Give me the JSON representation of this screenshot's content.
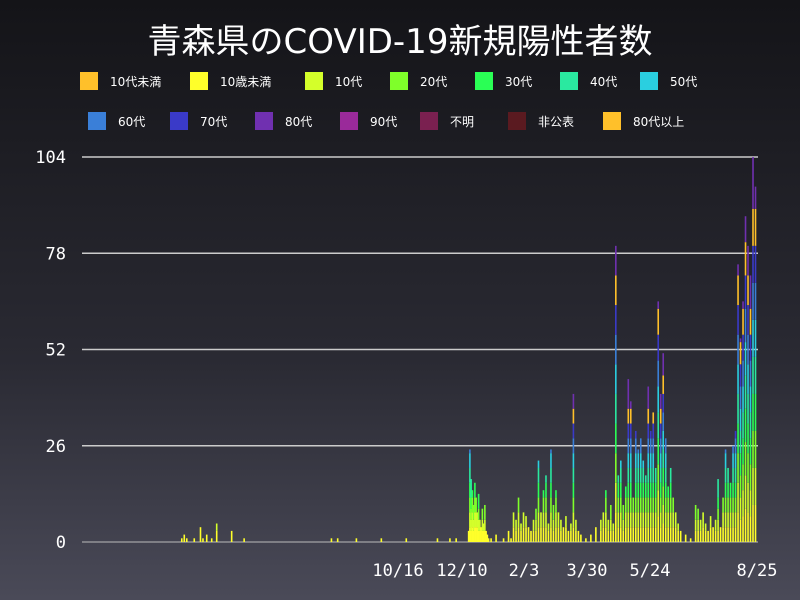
{
  "chart_data": {
    "type": "bar",
    "stacked": true,
    "title": "青森県のCOVID-19新規陽性者数",
    "xlabel": "",
    "ylabel": "",
    "ylim": [
      0,
      104
    ],
    "yticks": [
      0,
      26,
      52,
      78,
      104
    ],
    "grid": "horizontal",
    "legend_placement": "top",
    "x_tick_labels": [
      {
        "label": "10/16",
        "day_index": 234
      },
      {
        "label": "12/10",
        "day_index": 289
      },
      {
        "label": "2/3",
        "day_index": 344
      },
      {
        "label": "3/30",
        "day_index": 399
      },
      {
        "label": "5/24",
        "day_index": 454
      },
      {
        "label": "8/25",
        "day_index": 547
      }
    ],
    "series": [
      {
        "name": "10代未満",
        "color": "#ffc02a"
      },
      {
        "name": "10歳未満",
        "color": "#ffff2a"
      },
      {
        "name": "10代",
        "color": "#d4ff2a"
      },
      {
        "name": "20代",
        "color": "#7fff2a"
      },
      {
        "name": "30代",
        "color": "#2aff55"
      },
      {
        "name": "40代",
        "color": "#2ae9a0"
      },
      {
        "name": "50代",
        "color": "#2acfe0"
      },
      {
        "name": "60代",
        "color": "#3a7fd8"
      },
      {
        "name": "70代",
        "color": "#3a3ac8"
      },
      {
        "name": "80代",
        "color": "#7030b0"
      },
      {
        "name": "90代",
        "color": "#9a2a9a"
      },
      {
        "name": "不明",
        "color": "#7a2050"
      },
      {
        "name": "非公表",
        "color": "#5a1a20"
      },
      {
        "name": "80代以上",
        "color": "#ffc02a"
      }
    ],
    "daily_totals": [
      {
        "day": 0,
        "value": 1
      },
      {
        "day": 2,
        "value": 2
      },
      {
        "day": 4,
        "value": 1
      },
      {
        "day": 10,
        "value": 1
      },
      {
        "day": 15,
        "value": 4
      },
      {
        "day": 17,
        "value": 1
      },
      {
        "day": 20,
        "value": 2
      },
      {
        "day": 24,
        "value": 1
      },
      {
        "day": 28,
        "value": 5
      },
      {
        "day": 40,
        "value": 3
      },
      {
        "day": 50,
        "value": 1
      },
      {
        "day": 120,
        "value": 1
      },
      {
        "day": 125,
        "value": 1
      },
      {
        "day": 140,
        "value": 1
      },
      {
        "day": 160,
        "value": 1
      },
      {
        "day": 180,
        "value": 1
      },
      {
        "day": 205,
        "value": 1
      },
      {
        "day": 215,
        "value": 1
      },
      {
        "day": 220,
        "value": 1
      },
      {
        "day": 230,
        "value": 3
      },
      {
        "day": 231,
        "value": 25
      },
      {
        "day": 232,
        "value": 17
      },
      {
        "day": 233,
        "value": 14
      },
      {
        "day": 234,
        "value": 10
      },
      {
        "day": 235,
        "value": 16
      },
      {
        "day": 236,
        "value": 12
      },
      {
        "day": 237,
        "value": 8
      },
      {
        "day": 238,
        "value": 13
      },
      {
        "day": 239,
        "value": 6
      },
      {
        "day": 240,
        "value": 4
      },
      {
        "day": 241,
        "value": 9
      },
      {
        "day": 242,
        "value": 5
      },
      {
        "day": 243,
        "value": 10
      },
      {
        "day": 244,
        "value": 3
      },
      {
        "day": 245,
        "value": 2
      },
      {
        "day": 246,
        "value": 1
      },
      {
        "day": 248,
        "value": 1
      },
      {
        "day": 252,
        "value": 2
      },
      {
        "day": 258,
        "value": 1
      },
      {
        "day": 262,
        "value": 3
      },
      {
        "day": 264,
        "value": 1
      },
      {
        "day": 266,
        "value": 8
      },
      {
        "day": 268,
        "value": 6
      },
      {
        "day": 270,
        "value": 12
      },
      {
        "day": 272,
        "value": 5
      },
      {
        "day": 274,
        "value": 8
      },
      {
        "day": 276,
        "value": 7
      },
      {
        "day": 278,
        "value": 4
      },
      {
        "day": 280,
        "value": 3
      },
      {
        "day": 282,
        "value": 6
      },
      {
        "day": 284,
        "value": 9
      },
      {
        "day": 286,
        "value": 22
      },
      {
        "day": 288,
        "value": 8
      },
      {
        "day": 290,
        "value": 14
      },
      {
        "day": 292,
        "value": 18
      },
      {
        "day": 294,
        "value": 5
      },
      {
        "day": 296,
        "value": 25
      },
      {
        "day": 298,
        "value": 10
      },
      {
        "day": 300,
        "value": 14
      },
      {
        "day": 302,
        "value": 8
      },
      {
        "day": 304,
        "value": 6
      },
      {
        "day": 306,
        "value": 4
      },
      {
        "day": 308,
        "value": 7
      },
      {
        "day": 310,
        "value": 3
      },
      {
        "day": 312,
        "value": 5
      },
      {
        "day": 314,
        "value": 40
      },
      {
        "day": 316,
        "value": 6
      },
      {
        "day": 318,
        "value": 3
      },
      {
        "day": 320,
        "value": 2
      },
      {
        "day": 324,
        "value": 1
      },
      {
        "day": 328,
        "value": 2
      },
      {
        "day": 332,
        "value": 4
      },
      {
        "day": 336,
        "value": 6
      },
      {
        "day": 338,
        "value": 8
      },
      {
        "day": 340,
        "value": 14
      },
      {
        "day": 342,
        "value": 6
      },
      {
        "day": 344,
        "value": 10
      },
      {
        "day": 346,
        "value": 5
      },
      {
        "day": 348,
        "value": 80
      },
      {
        "day": 350,
        "value": 18
      },
      {
        "day": 352,
        "value": 22
      },
      {
        "day": 354,
        "value": 10
      },
      {
        "day": 356,
        "value": 15
      },
      {
        "day": 358,
        "value": 44
      },
      {
        "day": 360,
        "value": 38
      },
      {
        "day": 362,
        "value": 12
      },
      {
        "day": 364,
        "value": 30
      },
      {
        "day": 366,
        "value": 25
      },
      {
        "day": 368,
        "value": 28
      },
      {
        "day": 370,
        "value": 22
      },
      {
        "day": 372,
        "value": 18
      },
      {
        "day": 374,
        "value": 42
      },
      {
        "day": 376,
        "value": 30
      },
      {
        "day": 378,
        "value": 35
      },
      {
        "day": 380,
        "value": 20
      },
      {
        "day": 382,
        "value": 65
      },
      {
        "day": 384,
        "value": 40
      },
      {
        "day": 386,
        "value": 51
      },
      {
        "day": 388,
        "value": 28
      },
      {
        "day": 390,
        "value": 15
      },
      {
        "day": 392,
        "value": 20
      },
      {
        "day": 394,
        "value": 12
      },
      {
        "day": 396,
        "value": 8
      },
      {
        "day": 398,
        "value": 5
      },
      {
        "day": 400,
        "value": 3
      },
      {
        "day": 404,
        "value": 2
      },
      {
        "day": 408,
        "value": 1
      },
      {
        "day": 412,
        "value": 10
      },
      {
        "day": 414,
        "value": 9
      },
      {
        "day": 416,
        "value": 6
      },
      {
        "day": 418,
        "value": 8
      },
      {
        "day": 420,
        "value": 5
      },
      {
        "day": 422,
        "value": 3
      },
      {
        "day": 424,
        "value": 7
      },
      {
        "day": 426,
        "value": 4
      },
      {
        "day": 428,
        "value": 6
      },
      {
        "day": 430,
        "value": 17
      },
      {
        "day": 432,
        "value": 4
      },
      {
        "day": 434,
        "value": 12
      },
      {
        "day": 436,
        "value": 25
      },
      {
        "day": 438,
        "value": 20
      },
      {
        "day": 440,
        "value": 16
      },
      {
        "day": 442,
        "value": 26
      },
      {
        "day": 444,
        "value": 30
      },
      {
        "day": 446,
        "value": 75
      },
      {
        "day": 448,
        "value": 55
      },
      {
        "day": 450,
        "value": 65
      },
      {
        "day": 452,
        "value": 88
      },
      {
        "day": 454,
        "value": 80
      },
      {
        "day": 456,
        "value": 72
      },
      {
        "day": 458,
        "value": 104
      },
      {
        "day": 460,
        "value": 96
      }
    ]
  }
}
